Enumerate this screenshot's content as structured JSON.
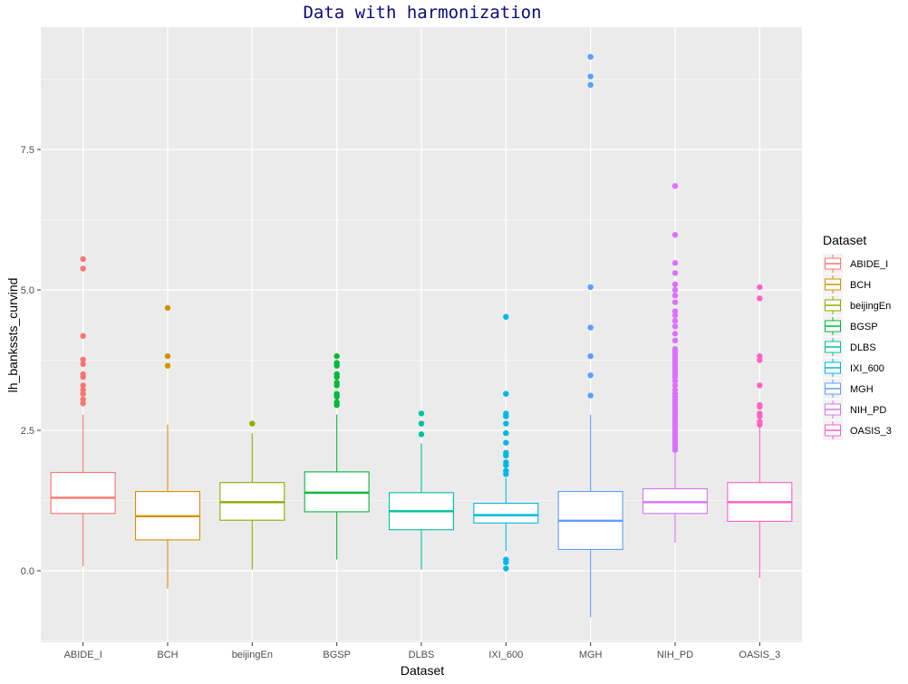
{
  "chart_data": {
    "type": "boxplot",
    "title": "Data with harmonization",
    "xlabel": "Dataset",
    "ylabel": "lh_bankssts_curvind",
    "ylim": [
      -1.3,
      9.6
    ],
    "yticks": [
      0.0,
      2.5,
      5.0,
      7.5
    ],
    "ytick_labels": [
      "0.0",
      "2.5",
      "5.0",
      "7.5"
    ],
    "grid": true,
    "legend": {
      "title": "Dataset",
      "position": "right"
    },
    "series": [
      {
        "name": "ABIDE_I",
        "color": "#F8766D",
        "whisker_low": 0.08,
        "q1": 1.02,
        "median": 1.3,
        "q3": 1.75,
        "whisker_high": 2.78,
        "outliers": [
          5.55,
          5.38,
          4.18,
          3.76,
          3.68,
          3.5,
          3.45,
          3.3,
          3.22,
          3.15,
          3.05,
          2.98
        ]
      },
      {
        "name": "BCH",
        "color": "#D39200",
        "whisker_low": -0.32,
        "q1": 0.55,
        "median": 0.97,
        "q3": 1.41,
        "whisker_high": 2.6,
        "outliers": [
          4.68,
          3.82,
          3.65
        ]
      },
      {
        "name": "beijingEn",
        "color": "#93AA00",
        "whisker_low": 0.02,
        "q1": 0.9,
        "median": 1.22,
        "q3": 1.57,
        "whisker_high": 2.45,
        "outliers": [
          2.62
        ]
      },
      {
        "name": "BGSP",
        "color": "#00BA38",
        "whisker_low": 0.2,
        "q1": 1.05,
        "median": 1.39,
        "q3": 1.76,
        "whisker_high": 2.78,
        "outliers": [
          3.82,
          3.7,
          3.65,
          3.5,
          3.45,
          3.35,
          3.3,
          3.15,
          3.1,
          3.0,
          2.95
        ]
      },
      {
        "name": "DLBS",
        "color": "#00C19F",
        "whisker_low": 0.02,
        "q1": 0.73,
        "median": 1.06,
        "q3": 1.39,
        "whisker_high": 2.27,
        "outliers": [
          2.8,
          2.62,
          2.43
        ]
      },
      {
        "name": "IXI_600",
        "color": "#00B9E3",
        "whisker_low": 0.35,
        "q1": 0.85,
        "median": 0.99,
        "q3": 1.2,
        "whisker_high": 1.65,
        "outliers": [
          4.52,
          3.15,
          2.8,
          2.75,
          2.62,
          2.45,
          2.28,
          2.1,
          2.05,
          1.93,
          1.88,
          1.78,
          1.72,
          0.2,
          0.15,
          0.04
        ]
      },
      {
        "name": "MGH",
        "color": "#619CFF",
        "whisker_low": -0.83,
        "q1": 0.38,
        "median": 0.89,
        "q3": 1.41,
        "whisker_high": 2.78,
        "outliers": [
          9.15,
          8.8,
          8.65,
          5.05,
          4.33,
          3.82,
          3.48,
          3.12
        ]
      },
      {
        "name": "NIH_PD",
        "color": "#DB72FB",
        "whisker_low": 0.5,
        "q1": 1.02,
        "median": 1.22,
        "q3": 1.46,
        "whisker_high": 2.1,
        "outliers": [
          6.85,
          5.98,
          5.48,
          5.3,
          5.1,
          5.0,
          4.9,
          4.78,
          4.62,
          4.55,
          4.45,
          4.35,
          4.22,
          4.1,
          3.95,
          3.9,
          3.85,
          3.8,
          3.75,
          3.7,
          3.65,
          3.6,
          3.55,
          3.5,
          3.45,
          3.38,
          3.3,
          3.22,
          3.15,
          3.1,
          3.05,
          3.0,
          2.95,
          2.9,
          2.85,
          2.8,
          2.75,
          2.7,
          2.65,
          2.6,
          2.55,
          2.5,
          2.45,
          2.4,
          2.35,
          2.3,
          2.25,
          2.2,
          2.15
        ]
      },
      {
        "name": "OASIS_3",
        "color": "#FF61C3",
        "whisker_low": -0.13,
        "q1": 0.88,
        "median": 1.22,
        "q3": 1.57,
        "whisker_high": 2.57,
        "outliers": [
          5.05,
          4.85,
          3.82,
          3.75,
          3.3,
          2.95,
          2.92,
          2.8,
          2.75,
          2.65,
          2.6
        ]
      }
    ]
  }
}
